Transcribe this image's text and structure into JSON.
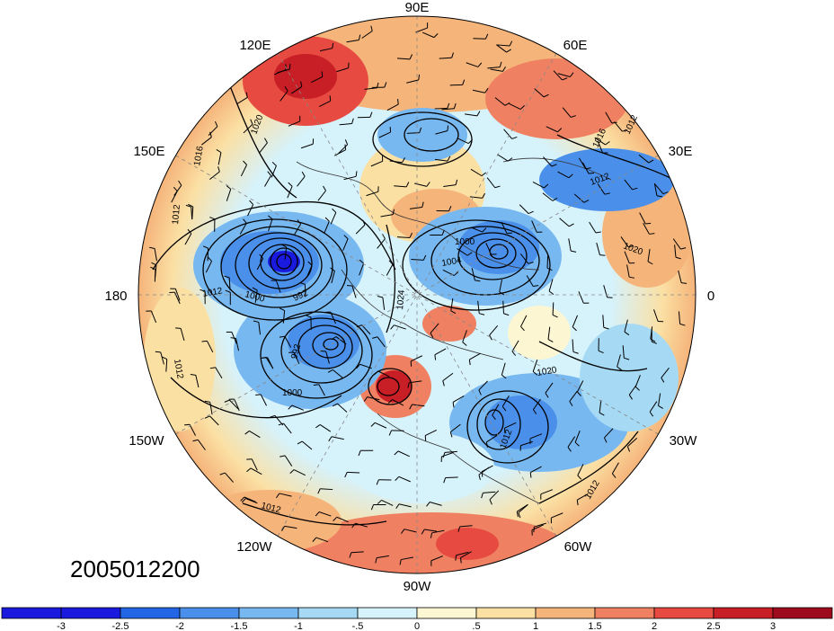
{
  "map": {
    "projection": "north-polar-stereographic",
    "longitude_labels": [
      "90E",
      "60E",
      "30E",
      "0",
      "30W",
      "60W",
      "90W",
      "120W",
      "150W",
      "180",
      "150E",
      "120E"
    ],
    "contour_labels": [
      "1020",
      "1016",
      "1012",
      "1012",
      "1000",
      "992",
      "1024",
      "1004",
      "1000",
      "1020",
      "992",
      "1000",
      "1012",
      "1020",
      "1012",
      "1012",
      "1012",
      "1016",
      "1012"
    ],
    "date_label": "2005012200"
  },
  "colorbar": {
    "tick_labels": [
      "-3",
      "-2.5",
      "-2",
      "-1.5",
      "-1",
      "-.5",
      "0",
      ".5",
      "1",
      "1.5",
      "2",
      "2.5",
      "3"
    ],
    "colors": [
      "#1a1adf",
      "#2266e6",
      "#4a90ea",
      "#78b8f0",
      "#a6daf4",
      "#d6f2fb",
      "#fdf6d2",
      "#fbe0a4",
      "#f5b47a",
      "#ef8062",
      "#e64a40",
      "#c81e26",
      "#9e0b1c"
    ]
  }
}
